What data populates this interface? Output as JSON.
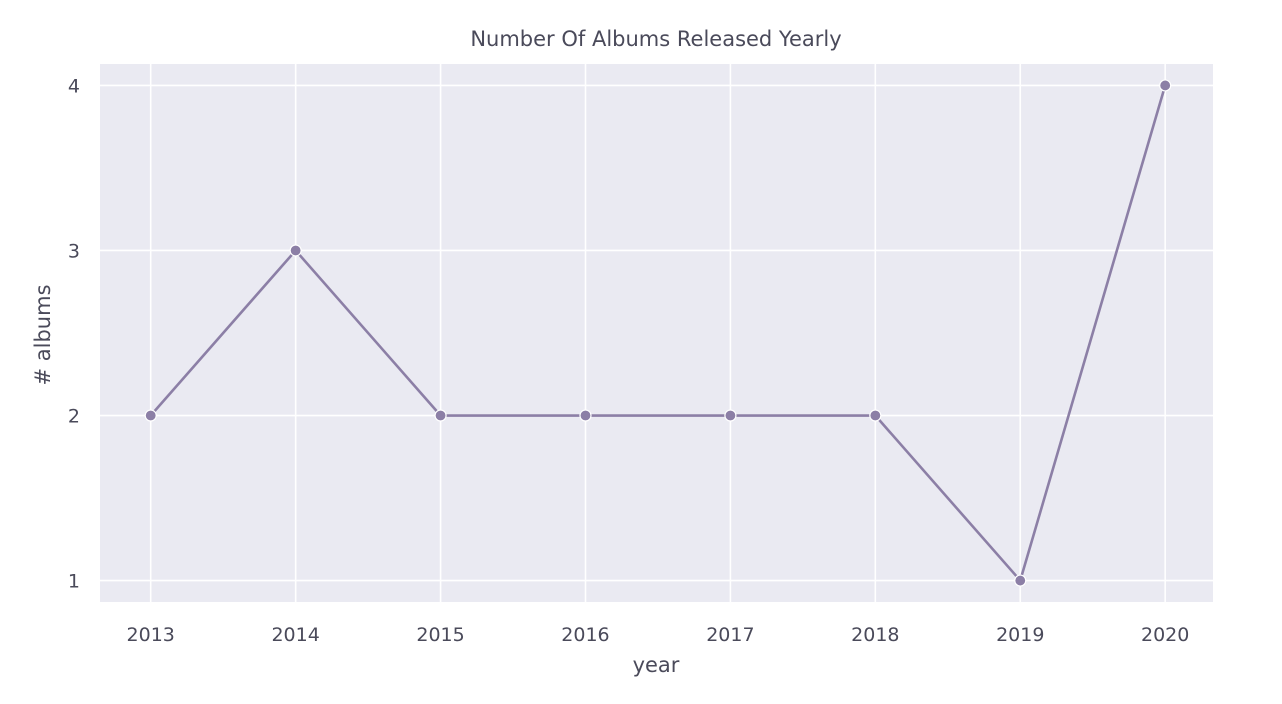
{
  "chart_data": {
    "type": "line",
    "title": "Number Of Albums Released Yearly",
    "xlabel": "year",
    "ylabel": "# albums",
    "x": [
      "2013",
      "2014",
      "2015",
      "2016",
      "2017",
      "2018",
      "2019",
      "2020"
    ],
    "series": [
      {
        "values": [
          2,
          3,
          2,
          2,
          2,
          2,
          1,
          4
        ]
      }
    ],
    "yticks": [
      1,
      2,
      3,
      4
    ],
    "ylim": [
      0.87,
      4.13
    ],
    "xlim": [
      2012.65,
      2020.33
    ],
    "grid": true,
    "marker": "circle",
    "colors": {
      "plot_background": "#eaeaf2",
      "grid": "#ffffff",
      "line": "#8c7fa6",
      "text": "#4a4a5a"
    }
  }
}
